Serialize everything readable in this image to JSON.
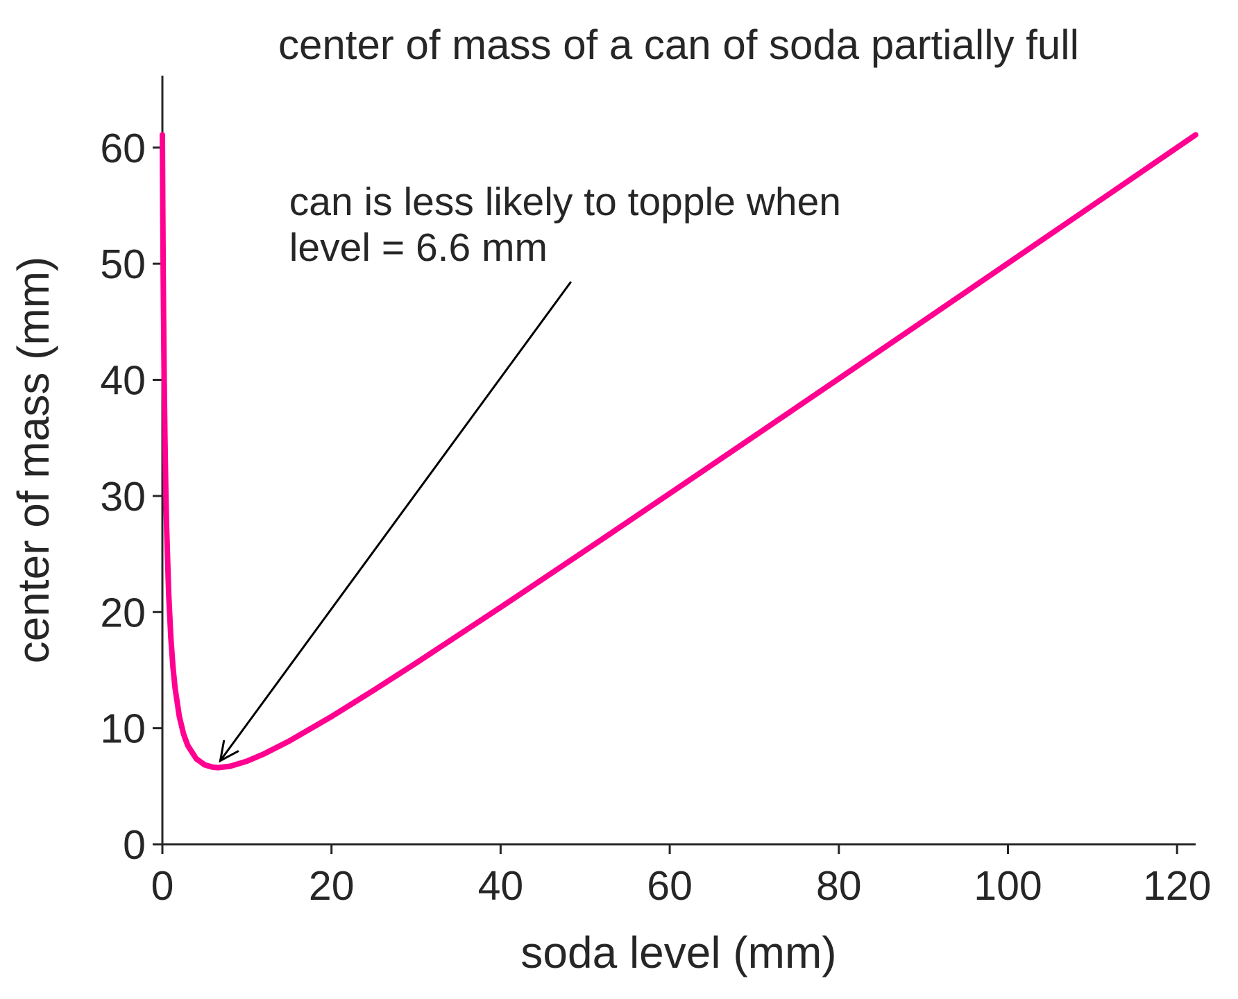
{
  "chart_data": {
    "type": "line",
    "title": "center of mass of a can of soda partially full",
    "xlabel": "soda level (mm)",
    "ylabel": "center of mass (mm)",
    "x": [
      0,
      0.05,
      0.1,
      0.2,
      0.3,
      0.4,
      0.5,
      0.75,
      1,
      1.25,
      1.5,
      2,
      2.5,
      3,
      4,
      5,
      6,
      6.6,
      8,
      10,
      12,
      15,
      20,
      25,
      30,
      40,
      50,
      60,
      70,
      80,
      90,
      100,
      110,
      122.2
    ],
    "series": [
      {
        "color": "#ff0090",
        "values": [
          61.1,
          54.31,
          48.89,
          40.77,
          34.98,
          30.65,
          27.29,
          21.5,
          17.81,
          15.28,
          13.46,
          11.02,
          9.51,
          8.51,
          7.37,
          6.84,
          6.63,
          6.6,
          6.72,
          7.16,
          7.78,
          8.89,
          11.0,
          13.27,
          15.61,
          20.41,
          25.29,
          30.21,
          35.15,
          40.1,
          45.07,
          50.04,
          55.02,
          61.1
        ]
      }
    ],
    "xlim": [
      0,
      122.2
    ],
    "ylim": [
      0,
      66.2
    ],
    "xticks": [
      0,
      20,
      40,
      60,
      80,
      100,
      120
    ],
    "yticks": [
      0,
      10,
      20,
      30,
      40,
      50,
      60
    ],
    "grid": false,
    "annotation": {
      "lines": [
        "can is less likely to topple when",
        "level = 6.6 mm"
      ],
      "xy": [
        6.6,
        6.6
      ],
      "xytext": [
        15,
        50
      ]
    }
  }
}
